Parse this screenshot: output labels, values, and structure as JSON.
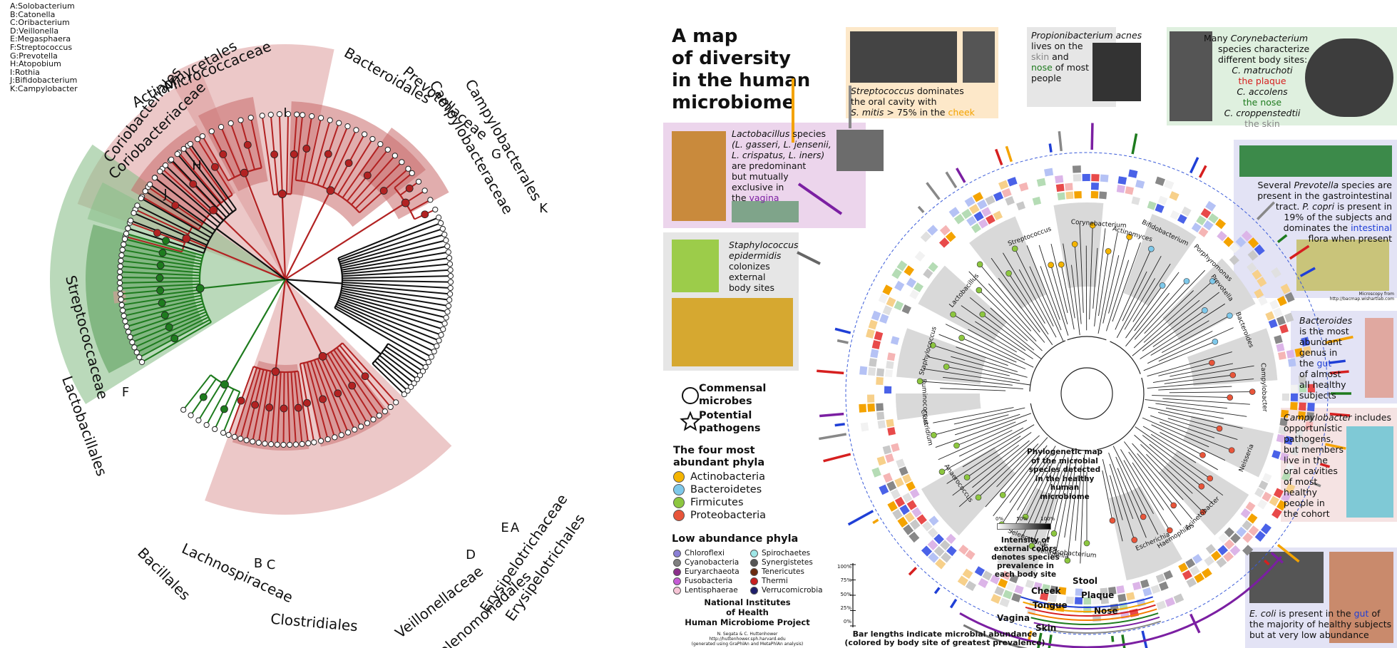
{
  "left_figure": {
    "genus_key": [
      "A:Solobacterium",
      "B:Catonella",
      "C:Oribacterium",
      "D:Veillonella",
      "E:Megasphaera",
      "F:Streptococcus",
      "G:Prevotella",
      "H:Atopobium",
      "I:Rothia",
      "J:Bifidobacterium",
      "K:Campylobacter"
    ],
    "clade_labels": {
      "coriobacteriales": "Coriobacteriales",
      "coriobacteriaceae": "Coriobacteriaceae",
      "actinomycetales": "Actinomycetales",
      "micrococcaceae": "Micrococcaceae",
      "bacteroidales": "Bacteroidales",
      "prevotellaceae": "Prevotellaceae",
      "campylobacterales": "Campylobacterales",
      "campylobacteraceae": "Campylobacteraceae",
      "streptococcaceae": "Streptococcaceae",
      "lactobacillales": "Lactobacillales",
      "bacillales": "Bacillales",
      "lachnospiraceae": "Lachnospiraceae",
      "clostridiales": "Clostridiales",
      "veillonellaceae": "Veillonellaceae",
      "selenomonadales": "Selenomonadales",
      "erysipelotrichaceae": "Erysipelotrichaceae",
      "erysipelotrichales": "Erysipelotrichales"
    },
    "letters": {
      "a": "A",
      "b": "B",
      "c": "C",
      "d": "D",
      "e": "E",
      "f": "F",
      "g": "G",
      "h": "H",
      "i": "I",
      "j": "J",
      "k": "K"
    },
    "colors": {
      "red": "#b22222",
      "green": "#1e7b1e",
      "black": "#111111",
      "red_shade": "#e8b7b7",
      "green_shade": "#b7d9b7"
    }
  },
  "poster": {
    "title_lines": [
      "A map",
      "of diversity",
      "in the human",
      "microbiome"
    ],
    "strep_box": {
      "genus": "Streptococcus",
      "l1": " dominates",
      "l2": "the oral cavity with",
      "species": "S. mitis",
      "l3": " > 75% in the ",
      "site": "cheek"
    },
    "acnes_box": {
      "genus": "Propionibacterium acnes",
      "l1": "lives on the",
      "site1": "skin",
      "l2": " and",
      "site2": "nose",
      "l3": " of most",
      "l4": "people"
    },
    "coryne_box": {
      "l1": "Many ",
      "genus": "Corynebacterium",
      "l2": "species characterize",
      "l3": "different body sites:",
      "s1": "C. matruchoti",
      "s1b": "the plaque",
      "s2": "C. accolens",
      "s2b": "the nose",
      "s3": "C. croppenstedtii",
      "s3b": "the skin"
    },
    "lacto_box": {
      "genus": "Lactobacillus",
      "l1": " species",
      "l2": "(L. gasseri, L. jensenii,",
      "l3": "L. crispatus, L. iners)",
      "l4": "are predominant",
      "l5": "but mutually",
      "l6": "exclusive in",
      "l7": "the ",
      "site": "vagina"
    },
    "staph_box": {
      "l1": "Staphylococcus",
      "l2": "epidermidis",
      "l3": "colonizes",
      "l4": "external",
      "l5": "body sites"
    },
    "prevotella_box": {
      "l1": "Several ",
      "genus": "Prevotella",
      "l1b": " species are",
      "l2": "present in the gastrointestinal",
      "l3": "tract.   ",
      "sp": "P. copri",
      "l3b": " is present in",
      "l4": "19% of the subjects and",
      "l5": "dominates the ",
      "site": "intestinal",
      "l6": "flora when present",
      "credit": "Microscopy from http://bacmap.wishartlab.com"
    },
    "bacteroides_box": {
      "genus": "Bacteroides",
      "l1": "is the most",
      "l2": "abundant",
      "l3": "genus in",
      "l4": "the ",
      "site": "gut",
      "l5": "of almost",
      "l6": "all healthy",
      "l7": "subjects"
    },
    "campy_box": {
      "genus": "Campylobacter",
      "l1": " includes",
      "l2": "opportunistic",
      "l3": "pathogens,",
      "l4": "but members",
      "l5": "live in the",
      "l6": "oral cavities",
      "l7": "of most",
      "l8": "healthy",
      "l9": "people in",
      "l10": "the cohort"
    },
    "ecoli_box": {
      "genus": "E. coli",
      "l1": " is present in the ",
      "site": "gut",
      "l2": " of",
      "l3": "the majority of healthy subjects",
      "l4": "but at very low abundance"
    },
    "shape_legend": {
      "circle": [
        "Commensal",
        "microbes"
      ],
      "star": [
        "Potential",
        "pathogens"
      ]
    },
    "phyla_title": [
      "The four most",
      "abundant phyla"
    ],
    "phyla": [
      {
        "name": "Actinobacteria",
        "color": "#f4b400"
      },
      {
        "name": "Bacteroidetes",
        "color": "#7ec8ea"
      },
      {
        "name": "Firmicutes",
        "color": "#8cc63f"
      },
      {
        "name": "Proteobacteria",
        "color": "#e8553a"
      }
    ],
    "low_title": "Low abundance phyla",
    "low_phyla_col1": [
      {
        "name": "Chloroflexi",
        "color": "#8a7fd6"
      },
      {
        "name": "Cyanobacteria",
        "color": "#7f7f7f"
      },
      {
        "name": "Euryarchaeota",
        "color": "#8b2f8b"
      },
      {
        "name": "Fusobacteria",
        "color": "#c65cd6"
      },
      {
        "name": "Lentisphaerae",
        "color": "#f7c5d6"
      }
    ],
    "low_phyla_col2": [
      {
        "name": "Spirochaetes",
        "color": "#9fe7e7"
      },
      {
        "name": "Synergistetes",
        "color": "#555555"
      },
      {
        "name": "Tenericutes",
        "color": "#6b2a0f"
      },
      {
        "name": "Thermi",
        "color": "#c81e1e"
      },
      {
        "name": "Verrucomicrobia",
        "color": "#1e1e6b"
      }
    ],
    "nih": [
      "National Institutes",
      "of Health",
      "Human Microbiome Project"
    ],
    "credit": [
      "N. Segata & C. Huttenhower",
      "http://huttenhower.sph.harvard.edu",
      "(generated using GraPhlAn and MetaPhlAn analysis)"
    ],
    "bar_caption": [
      "Bar lengths indicate microbial abundance",
      "(colored by body site of greatest prevalence)"
    ],
    "bar_ticks": [
      "100%",
      "75%",
      "50%",
      "25%",
      "0%"
    ],
    "center_caption": [
      "Phylogenetic map",
      "of the microbial",
      "species detected",
      "in the healthy",
      "human",
      "microbiome"
    ],
    "intensity_ticks": [
      "0%",
      "50%",
      "100%"
    ],
    "intensity_caption": [
      "Intensity of",
      "external colors",
      "denotes species",
      "prevalence in",
      "each body site"
    ],
    "sites": [
      {
        "name": "Stool",
        "color": "#1f3fd6"
      },
      {
        "name": "Cheek",
        "color": "#f4a300"
      },
      {
        "name": "Plaque",
        "color": "#d61f1f"
      },
      {
        "name": "Tongue",
        "color": "#f47c00"
      },
      {
        "name": "Nose",
        "color": "#1e7b1e"
      },
      {
        "name": "Vagina",
        "color": "#7b1fa2"
      },
      {
        "name": "Skin",
        "color": "#888888"
      }
    ],
    "genus_labels": {
      "streptococcus": "Streptococcus",
      "lactobacillus": "Lactobacillus",
      "staphylococcus": "Staphylococcus",
      "ruminococcus": "Ruminococcus",
      "clostridium": "Clostridium",
      "anaerococcus": "Anaerococcus",
      "selenomonas": "Selenomonas",
      "veillonella": "Veillonella",
      "fusobacterium": "Fusobacterium",
      "escherichia": "Escherichia",
      "haemophilus": "Haemophilus",
      "acinetobacter": "Acinetobacter",
      "neisseria": "Neisseria",
      "campylobacter": "Campylobacter",
      "bacteroides": "Bacteroides",
      "prevotella": "Prevotella",
      "porphyromonas": "Porphyromonas",
      "bifidobacterium": "Bifidobacterium",
      "actinomyces": "Actinomyces",
      "corynebacterium": "Corynebacterium"
    }
  }
}
